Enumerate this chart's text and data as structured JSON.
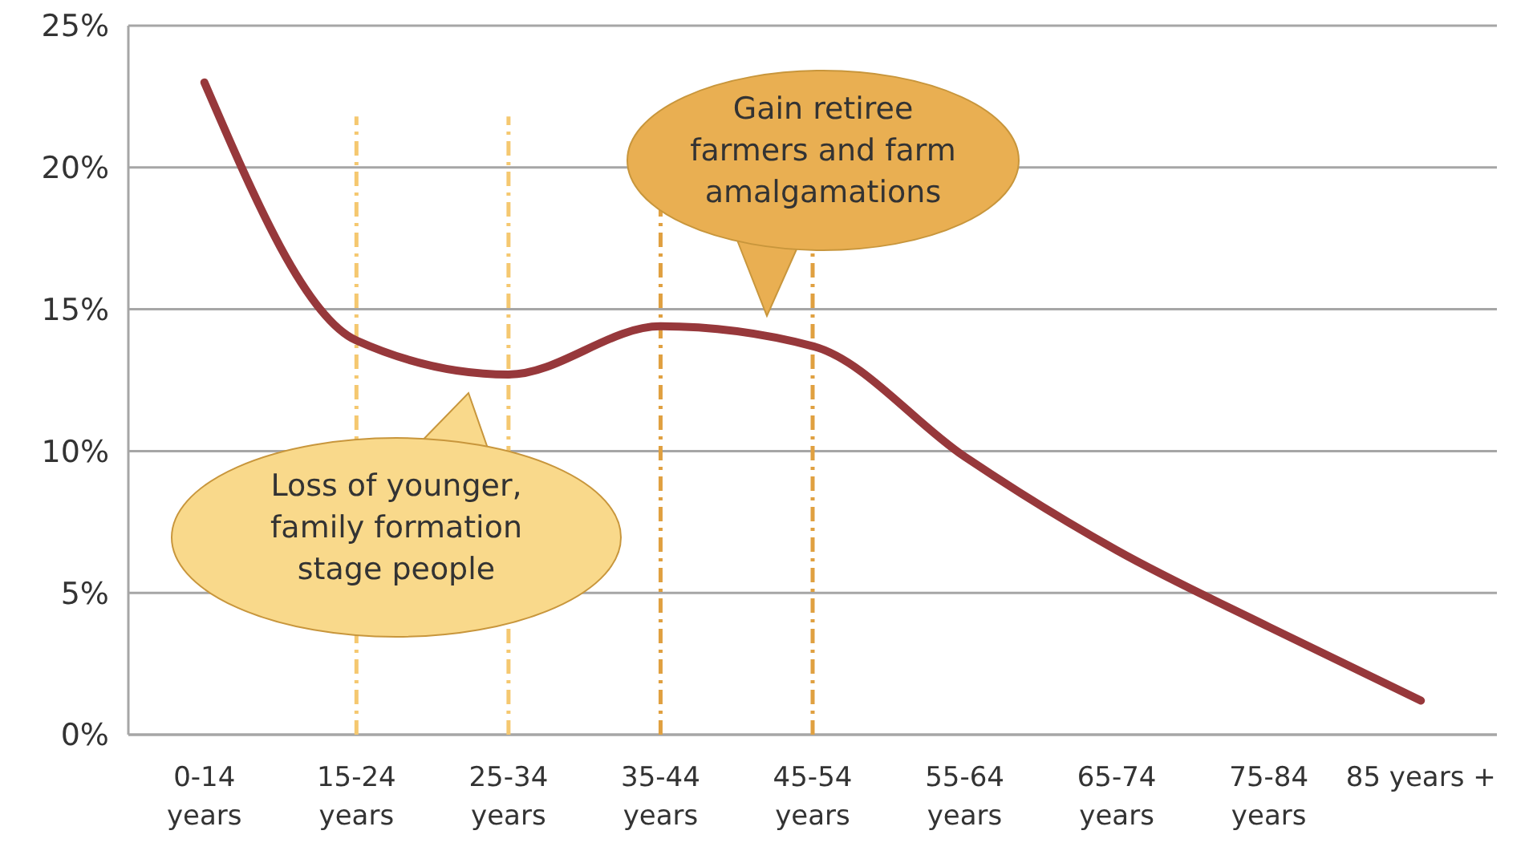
{
  "chart_data": {
    "type": "line",
    "categories": [
      "0-14\nyears",
      "15-24\nyears",
      "25-34\nyears",
      "35-44\nyears",
      "45-54\nyears",
      "55-64\nyears",
      "65-74\nyears",
      "75-84\nyears",
      "85 years +"
    ],
    "ylim": [
      0,
      25
    ],
    "yticks": [
      {
        "value": 0,
        "label": "0%"
      },
      {
        "value": 5,
        "label": "5%"
      },
      {
        "value": 10,
        "label": "10%"
      },
      {
        "value": 15,
        "label": "15%"
      },
      {
        "value": 20,
        "label": "20%"
      },
      {
        "value": 25,
        "label": "25%"
      }
    ],
    "series": [
      {
        "color": "#97383b",
        "values": [
          23.0,
          13.9,
          12.7,
          14.4,
          13.7,
          9.8,
          6.5,
          3.8,
          1.2
        ]
      }
    ],
    "grid": "y",
    "marker": "none",
    "line_style": "solid",
    "ref_lines": [
      {
        "axis": "x",
        "value": "15-24\nyears",
        "color": "#f5c870",
        "line_style": "dashdot"
      },
      {
        "axis": "x",
        "value": "25-34\nyears",
        "color": "#f5c870",
        "line_style": "dashdot"
      },
      {
        "axis": "x",
        "value": "35-44\nyears",
        "color": "#e0a040",
        "line_style": "dashdot"
      },
      {
        "axis": "x",
        "value": "45-54\nyears",
        "color": "#e0a040",
        "line_style": "dashdot"
      }
    ],
    "annotations": [
      "Loss of younger,\nfamily formation\nstage people",
      "Gain retiree\nfarmers and farm\namalgamations"
    ]
  }
}
